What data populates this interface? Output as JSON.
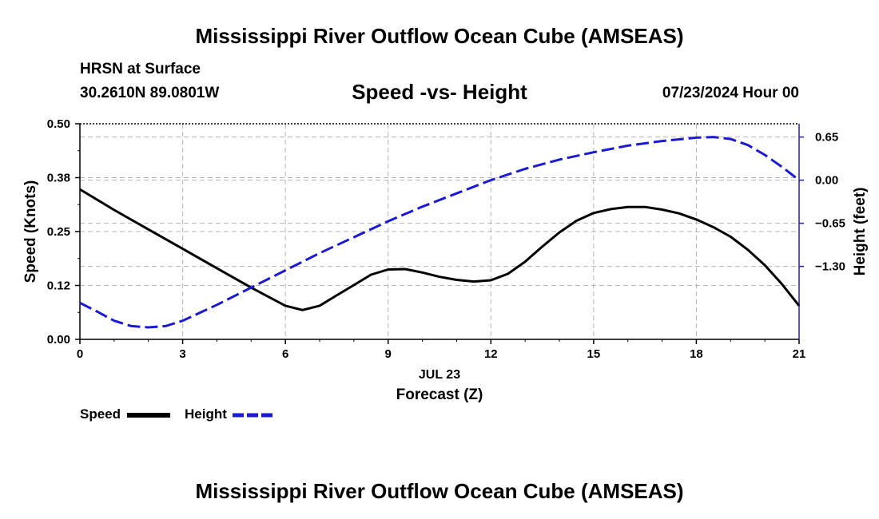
{
  "header": {
    "title": "Mississippi River Outflow Ocean Cube (AMSEAS)",
    "station": "HRSN at Surface",
    "coords": "30.2610N  89.0801W",
    "subtitle": "Speed -vs- Height",
    "date": "07/23/2024 Hour 00"
  },
  "legend": {
    "speed_label": "Speed",
    "height_label": "Height"
  },
  "footer": {
    "title": "Mississippi River Outflow Ocean Cube (AMSEAS)"
  },
  "colors": {
    "speed": "#000000",
    "height": "#1a1ad6",
    "grid": "#b4b4b4"
  },
  "chart_data": {
    "type": "line",
    "title": "Speed -vs- Height",
    "xlabel": "Forecast (Z)",
    "xdate_label": "JUL 23",
    "ylabel": "Speed (Knots)",
    "y2label": "Height (feet)",
    "xlim": [
      0,
      21
    ],
    "xticks": [
      0,
      3,
      6,
      9,
      12,
      15,
      18,
      21
    ],
    "ylim": [
      0,
      0.5
    ],
    "yticks": [
      0,
      0.125,
      0.25,
      0.375,
      0.5
    ],
    "ytick_labels": [
      "0.00",
      "0.12",
      "0.25",
      "0.38",
      "0.50"
    ],
    "y2lim": [
      -2.4,
      0.85
    ],
    "y2ticks": [
      -1.3,
      -0.65,
      0,
      0.65
    ],
    "y2tick_labels": [
      "−1.30",
      "−0.65",
      "0.00",
      "0.65"
    ],
    "grid": true,
    "series": [
      {
        "name": "Speed",
        "axis": "left",
        "style": "solid",
        "x": [
          0,
          1,
          2,
          3,
          4,
          5,
          6,
          6.5,
          7,
          7.5,
          8,
          8.5,
          9,
          9.5,
          10,
          10.5,
          11,
          11.5,
          12,
          12.5,
          13,
          13.5,
          14,
          14.5,
          15,
          15.5,
          16,
          16.5,
          17,
          17.5,
          18,
          18.5,
          19,
          19.5,
          20,
          20.5,
          21
        ],
        "values": [
          0.348,
          0.3,
          0.255,
          0.21,
          0.165,
          0.12,
          0.078,
          0.068,
          0.078,
          0.102,
          0.126,
          0.15,
          0.162,
          0.163,
          0.155,
          0.145,
          0.138,
          0.134,
          0.137,
          0.152,
          0.18,
          0.215,
          0.248,
          0.275,
          0.293,
          0.302,
          0.307,
          0.307,
          0.301,
          0.292,
          0.278,
          0.26,
          0.238,
          0.208,
          0.172,
          0.128,
          0.078
        ]
      },
      {
        "name": "Height",
        "axis": "right",
        "style": "dashed",
        "x": [
          0,
          0.5,
          1,
          1.5,
          2,
          2.5,
          3,
          4,
          5,
          6,
          7,
          8,
          9,
          10,
          11,
          12,
          13,
          14,
          15,
          16,
          17,
          18,
          18.5,
          19,
          19.5,
          20,
          20.5,
          21
        ],
        "values": [
          -1.85,
          -1.98,
          -2.12,
          -2.2,
          -2.22,
          -2.2,
          -2.12,
          -1.88,
          -1.62,
          -1.36,
          -1.1,
          -0.86,
          -0.62,
          -0.4,
          -0.2,
          0.0,
          0.17,
          0.31,
          0.42,
          0.52,
          0.59,
          0.64,
          0.65,
          0.62,
          0.53,
          0.38,
          0.2,
          0.0
        ]
      }
    ]
  }
}
